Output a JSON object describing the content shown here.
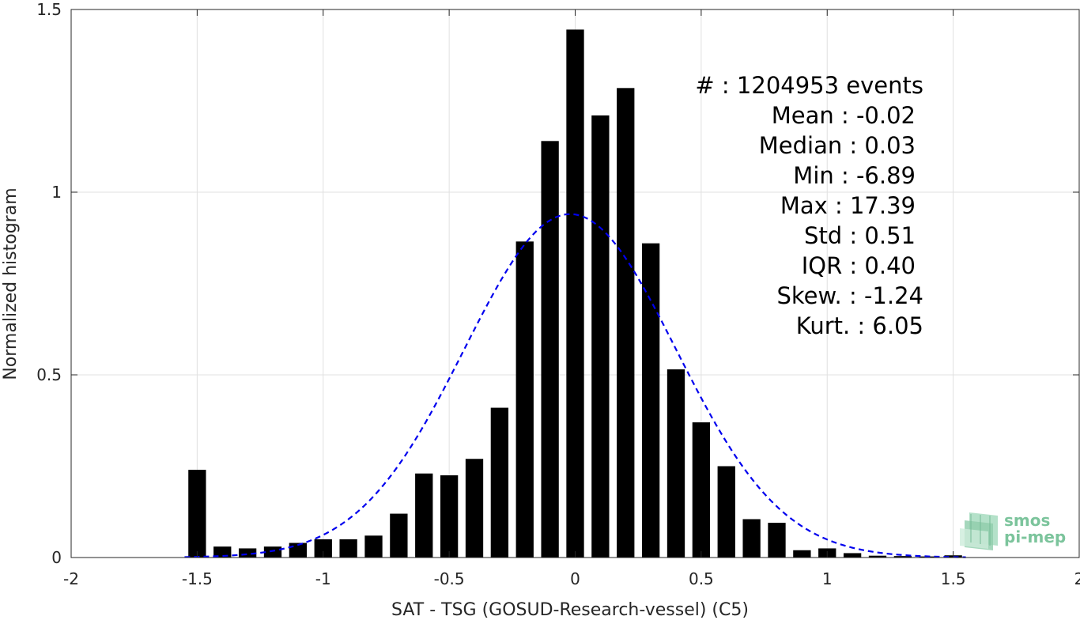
{
  "chart_data": {
    "type": "bar",
    "title": "",
    "xlabel": "SAT - TSG (GOSUD-Research-vessel) (C5)",
    "ylabel": "Normalized histogram",
    "xlim": [
      -2,
      2
    ],
    "ylim": [
      0,
      1.5
    ],
    "grid": true,
    "x_ticks": [
      -2,
      -1.5,
      -1,
      -0.5,
      0,
      0.5,
      1,
      1.5,
      2
    ],
    "x_tick_labels": [
      "-2",
      "-1.5",
      "-1",
      "-0.5",
      "0",
      "0.5",
      "1",
      "1.5",
      "2"
    ],
    "y_ticks": [
      0,
      0.5,
      1,
      1.5
    ],
    "y_tick_labels": [
      "0",
      "0.5",
      "1",
      "1.5"
    ],
    "bin_width": 0.1,
    "bar_width": 0.07,
    "bins": [
      {
        "x": -1.5,
        "y": 0.24
      },
      {
        "x": -1.4,
        "y": 0.03
      },
      {
        "x": -1.3,
        "y": 0.025
      },
      {
        "x": -1.2,
        "y": 0.03
      },
      {
        "x": -1.1,
        "y": 0.04
      },
      {
        "x": -1.0,
        "y": 0.05
      },
      {
        "x": -0.9,
        "y": 0.05
      },
      {
        "x": -0.8,
        "y": 0.06
      },
      {
        "x": -0.7,
        "y": 0.12
      },
      {
        "x": -0.6,
        "y": 0.23
      },
      {
        "x": -0.5,
        "y": 0.225
      },
      {
        "x": -0.4,
        "y": 0.27
      },
      {
        "x": -0.3,
        "y": 0.41
      },
      {
        "x": -0.2,
        "y": 0.865
      },
      {
        "x": -0.1,
        "y": 1.14
      },
      {
        "x": 0.0,
        "y": 1.445
      },
      {
        "x": 0.1,
        "y": 1.21
      },
      {
        "x": 0.2,
        "y": 1.285
      },
      {
        "x": 0.3,
        "y": 0.86
      },
      {
        "x": 0.4,
        "y": 0.515
      },
      {
        "x": 0.5,
        "y": 0.37
      },
      {
        "x": 0.6,
        "y": 0.25
      },
      {
        "x": 0.7,
        "y": 0.105
      },
      {
        "x": 0.8,
        "y": 0.095
      },
      {
        "x": 0.9,
        "y": 0.02
      },
      {
        "x": 1.0,
        "y": 0.025
      },
      {
        "x": 1.1,
        "y": 0.012
      },
      {
        "x": 1.2,
        "y": 0.005
      },
      {
        "x": 1.3,
        "y": 0.004
      },
      {
        "x": 1.4,
        "y": 0.003
      },
      {
        "x": 1.5,
        "y": 0.006
      }
    ],
    "fit": {
      "style": "dashed",
      "color": "#0000ee",
      "mean": -0.02,
      "std": 0.42,
      "peak": 0.94,
      "x_range": [
        -1.55,
        1.55
      ]
    },
    "bar_color": "#000000",
    "grid_color": "#e0e0e0",
    "axis_color": "#262626"
  },
  "stats": {
    "lines": [
      "#  : 1204953 events",
      "Mean : -0.02",
      "Median : 0.03",
      "Min : -6.89",
      "Max : 17.39",
      "Std : 0.51",
      "IQR : 0.40",
      "Skew. : -1.24",
      "Kurt. : 6.05"
    ]
  },
  "logo": {
    "line1": "smos",
    "line2": "pi-mep",
    "color": "#7cc49c"
  }
}
